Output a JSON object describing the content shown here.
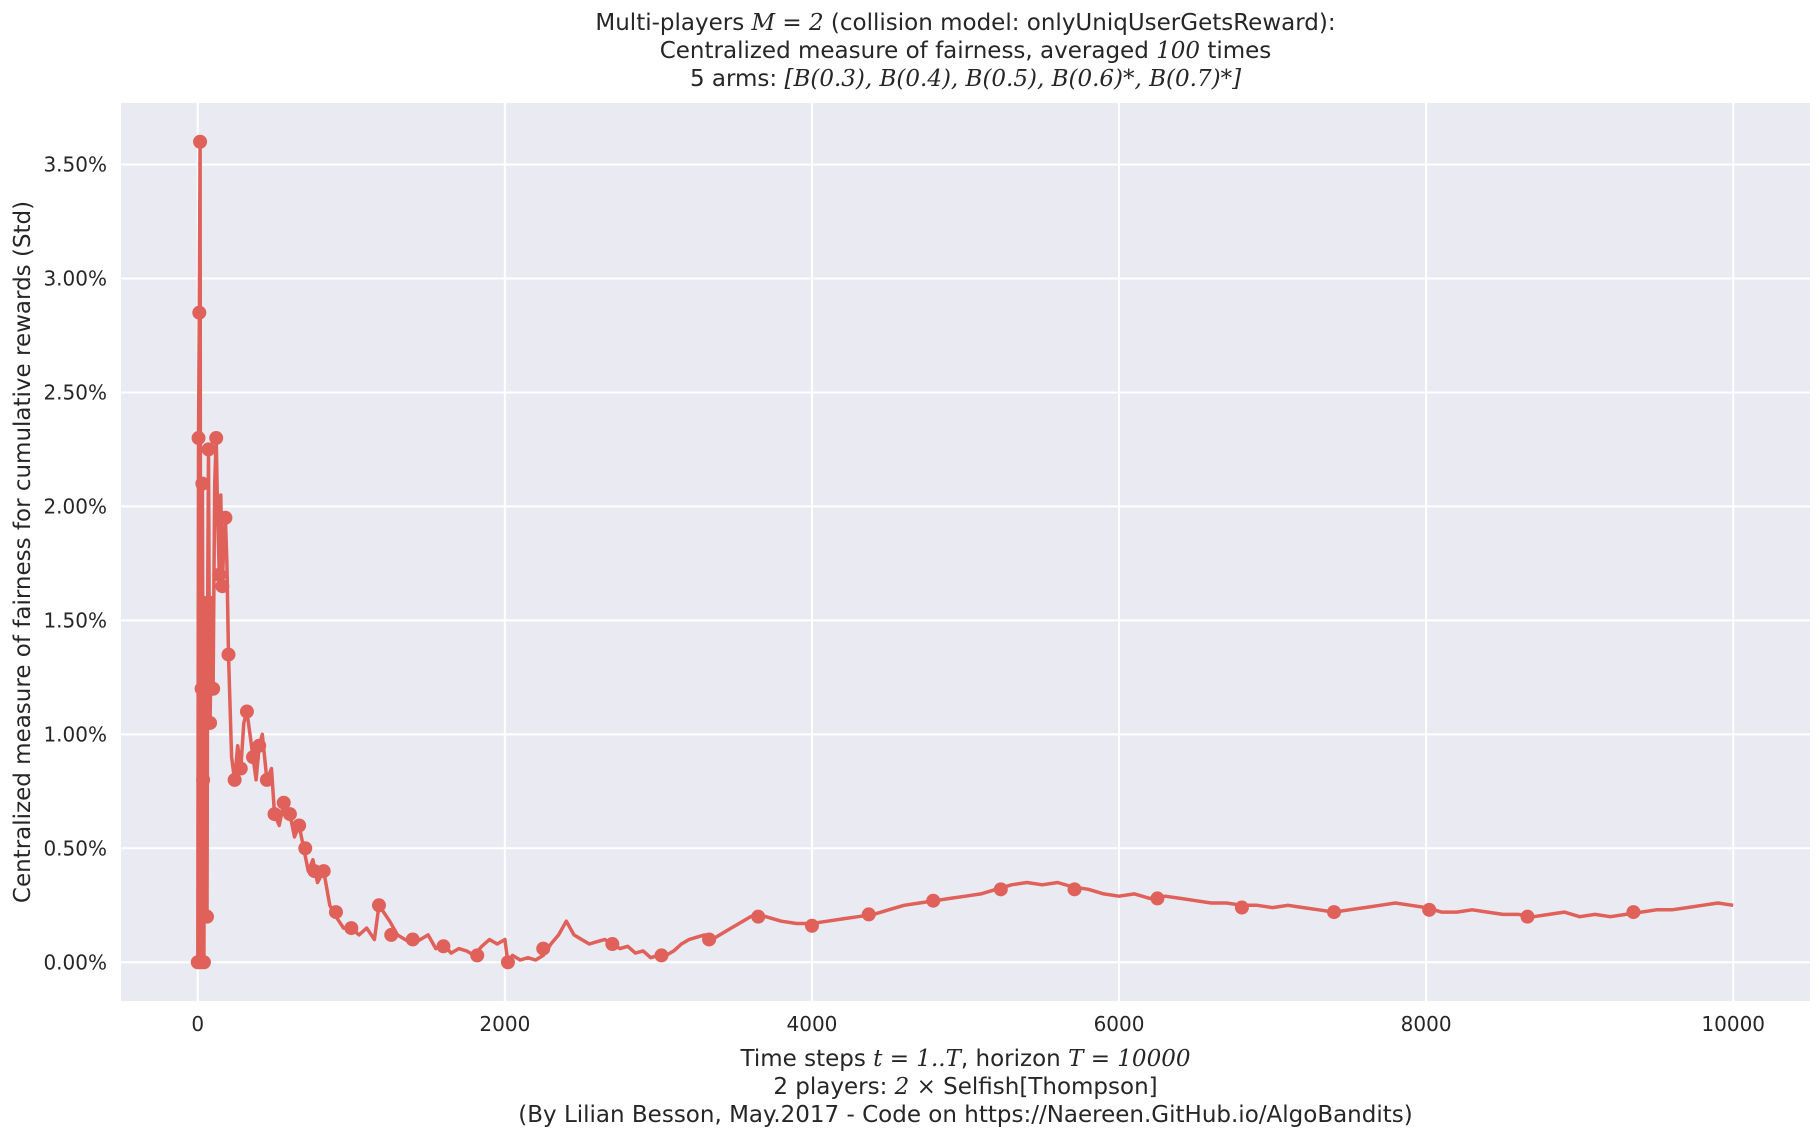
{
  "chart_data": {
    "type": "line",
    "title_lines": [
      [
        {
          "t": "Multi-players "
        },
        {
          "t": "M = 2",
          "m": true
        },
        {
          "t": " (collision model: onlyUniqUserGetsReward):"
        }
      ],
      [
        {
          "t": "Centralized measure of fairness, averaged "
        },
        {
          "t": "100",
          "m": true
        },
        {
          "t": " times"
        }
      ],
      [
        {
          "t": "5 arms: "
        },
        {
          "t": "[B(0.3), B(0.4), B(0.5), B(0.6)*, B(0.7)*]",
          "m": true
        }
      ]
    ],
    "xlabel_lines": [
      [
        {
          "t": "Time steps "
        },
        {
          "t": "t = 1..T",
          "m": true
        },
        {
          "t": ", horizon "
        },
        {
          "t": "T = 10000",
          "m": true
        }
      ],
      [
        {
          "t": "2 players: "
        },
        {
          "t": "2 ×",
          "m": true
        },
        {
          "t": "  Selfish[Thompson]"
        }
      ],
      [
        {
          "t": "(By Lilian Besson, May.2017 - Code on https://Naereen.GitHub.io/AlgoBandits)"
        }
      ]
    ],
    "ylabel": "Centralized measure of fairness for cumulative rewards (Std)",
    "xlim": [
      -500,
      10500
    ],
    "ylim": [
      -0.0017,
      0.0377
    ],
    "xticks": [
      0,
      2000,
      4000,
      6000,
      8000,
      10000
    ],
    "xtick_labels": [
      "0",
      "2000",
      "4000",
      "6000",
      "8000",
      "10000"
    ],
    "yticks": [
      0,
      0.005,
      0.01,
      0.015,
      0.02,
      0.025,
      0.03,
      0.035
    ],
    "ytick_labels": [
      "0.00%",
      "0.50%",
      "1.00%",
      "1.50%",
      "2.00%",
      "2.50%",
      "3.00%",
      "3.50%"
    ],
    "grid": true,
    "line_color": "#e0605a",
    "background_color": "#eaeaf2",
    "grid_color": "#ffffff",
    "series": [
      {
        "x": [
          0,
          5,
          10,
          15,
          20,
          25,
          30,
          35,
          40,
          45,
          50,
          55,
          60,
          65,
          70,
          75,
          80,
          90,
          100,
          110,
          120,
          130,
          140,
          150,
          160,
          170,
          180,
          190,
          200,
          220,
          240,
          260,
          280,
          300,
          320,
          340,
          360,
          380,
          400,
          420,
          450,
          480,
          500,
          530,
          560,
          600,
          630,
          660,
          690,
          720,
          750,
          780,
          820,
          860,
          900,
          950,
          1000,
          1050,
          1100,
          1150,
          1180,
          1210,
          1250,
          1300,
          1350,
          1400,
          1450,
          1500,
          1550,
          1600,
          1650,
          1700,
          1750,
          1800,
          1850,
          1900,
          1950,
          2000,
          2020,
          2050,
          2100,
          2150,
          2200,
          2250,
          2300,
          2350,
          2400,
          2450,
          2500,
          2550,
          2600,
          2650,
          2700,
          2750,
          2800,
          2850,
          2900,
          2950,
          3000,
          3050,
          3100,
          3150,
          3200,
          3250,
          3300,
          3350,
          3400,
          3450,
          3500,
          3550,
          3600,
          3650,
          3700,
          3800,
          3900,
          4000,
          4100,
          4200,
          4300,
          4400,
          4500,
          4600,
          4700,
          4800,
          4900,
          5000,
          5100,
          5200,
          5300,
          5400,
          5500,
          5600,
          5700,
          5800,
          5900,
          6000,
          6100,
          6200,
          6300,
          6400,
          6500,
          6600,
          6700,
          6800,
          6900,
          7000,
          7100,
          7200,
          7300,
          7400,
          7500,
          7600,
          7700,
          7800,
          7900,
          8000,
          8100,
          8200,
          8300,
          8400,
          8500,
          8600,
          8700,
          8800,
          8900,
          9000,
          9100,
          9200,
          9300,
          9400,
          9500,
          9600,
          9700,
          9800,
          9900,
          10000
        ],
        "y": [
          0.0,
          0.023,
          0.0285,
          0.036,
          0.0,
          0.012,
          0.021,
          0.008,
          0.0,
          0.016,
          0.013,
          0.006,
          0.002,
          0.017,
          0.0225,
          0.014,
          0.0105,
          0.016,
          0.012,
          0.021,
          0.023,
          0.0195,
          0.017,
          0.0205,
          0.0165,
          0.0185,
          0.0195,
          0.0175,
          0.0135,
          0.009,
          0.008,
          0.0095,
          0.0085,
          0.0105,
          0.011,
          0.01,
          0.009,
          0.008,
          0.0095,
          0.01,
          0.008,
          0.0085,
          0.0065,
          0.006,
          0.007,
          0.0065,
          0.0055,
          0.006,
          0.005,
          0.004,
          0.0045,
          0.0035,
          0.004,
          0.0025,
          0.002,
          0.0015,
          0.0015,
          0.0012,
          0.0015,
          0.001,
          0.0025,
          0.0022,
          0.0018,
          0.0012,
          0.001,
          0.0008,
          0.001,
          0.0012,
          0.0006,
          0.0008,
          0.0004,
          0.0006,
          0.0005,
          0.0003,
          0.0007,
          0.001,
          0.0008,
          0.001,
          0.0,
          0.0003,
          0.0001,
          0.0002,
          0.0001,
          0.0003,
          0.0008,
          0.0012,
          0.0018,
          0.0012,
          0.001,
          0.0008,
          0.0009,
          0.001,
          0.0008,
          0.0006,
          0.0007,
          0.0004,
          0.0005,
          0.0002,
          0.0003,
          0.0003,
          0.0005,
          0.0008,
          0.001,
          0.0011,
          0.0012,
          0.001,
          0.0012,
          0.0014,
          0.0016,
          0.0018,
          0.002,
          0.0021,
          0.002,
          0.0018,
          0.0017,
          0.0017,
          0.0018,
          0.0019,
          0.002,
          0.0021,
          0.0023,
          0.0025,
          0.0026,
          0.0027,
          0.0028,
          0.0029,
          0.003,
          0.0032,
          0.0034,
          0.0035,
          0.0034,
          0.0035,
          0.0033,
          0.0032,
          0.003,
          0.0029,
          0.003,
          0.0028,
          0.0029,
          0.0028,
          0.0027,
          0.0026,
          0.0026,
          0.0025,
          0.0025,
          0.0024,
          0.0025,
          0.0024,
          0.0023,
          0.0022,
          0.0023,
          0.0024,
          0.0025,
          0.0026,
          0.0025,
          0.0024,
          0.0022,
          0.0022,
          0.0023,
          0.0022,
          0.0021,
          0.0021,
          0.002,
          0.0021,
          0.0022,
          0.002,
          0.0021,
          0.002,
          0.0021,
          0.0022,
          0.0023,
          0.0023,
          0.0024,
          0.0025,
          0.0026,
          0.0025
        ]
      }
    ],
    "markers": {
      "x": [
        0,
        5,
        10,
        15,
        20,
        25,
        30,
        35,
        40,
        50,
        60,
        70,
        80,
        100,
        120,
        140,
        160,
        180,
        200,
        240,
        280,
        320,
        360,
        400,
        450,
        500,
        560,
        600,
        660,
        700,
        760,
        820,
        900,
        1000,
        1180,
        1260,
        1400,
        1600,
        1820,
        2020,
        2250,
        2700,
        3020,
        3330,
        3650,
        4000,
        4370,
        4790,
        5230,
        5710,
        6250,
        6800,
        7400,
        8020,
        8660,
        9350
      ],
      "y": [
        0.0,
        0.023,
        0.0285,
        0.036,
        0.0,
        0.012,
        0.021,
        0.008,
        0.0,
        0.013,
        0.002,
        0.0225,
        0.0105,
        0.012,
        0.023,
        0.017,
        0.0165,
        0.0195,
        0.0135,
        0.008,
        0.0085,
        0.011,
        0.009,
        0.0095,
        0.008,
        0.0065,
        0.007,
        0.0065,
        0.006,
        0.005,
        0.004,
        0.004,
        0.0022,
        0.0015,
        0.0025,
        0.0012,
        0.001,
        0.0007,
        0.0003,
        0.0,
        0.0006,
        0.0008,
        0.0003,
        0.001,
        0.002,
        0.0016,
        0.0021,
        0.0027,
        0.0032,
        0.0032,
        0.0028,
        0.0024,
        0.0022,
        0.0023,
        0.002,
        0.0022
      ]
    }
  }
}
